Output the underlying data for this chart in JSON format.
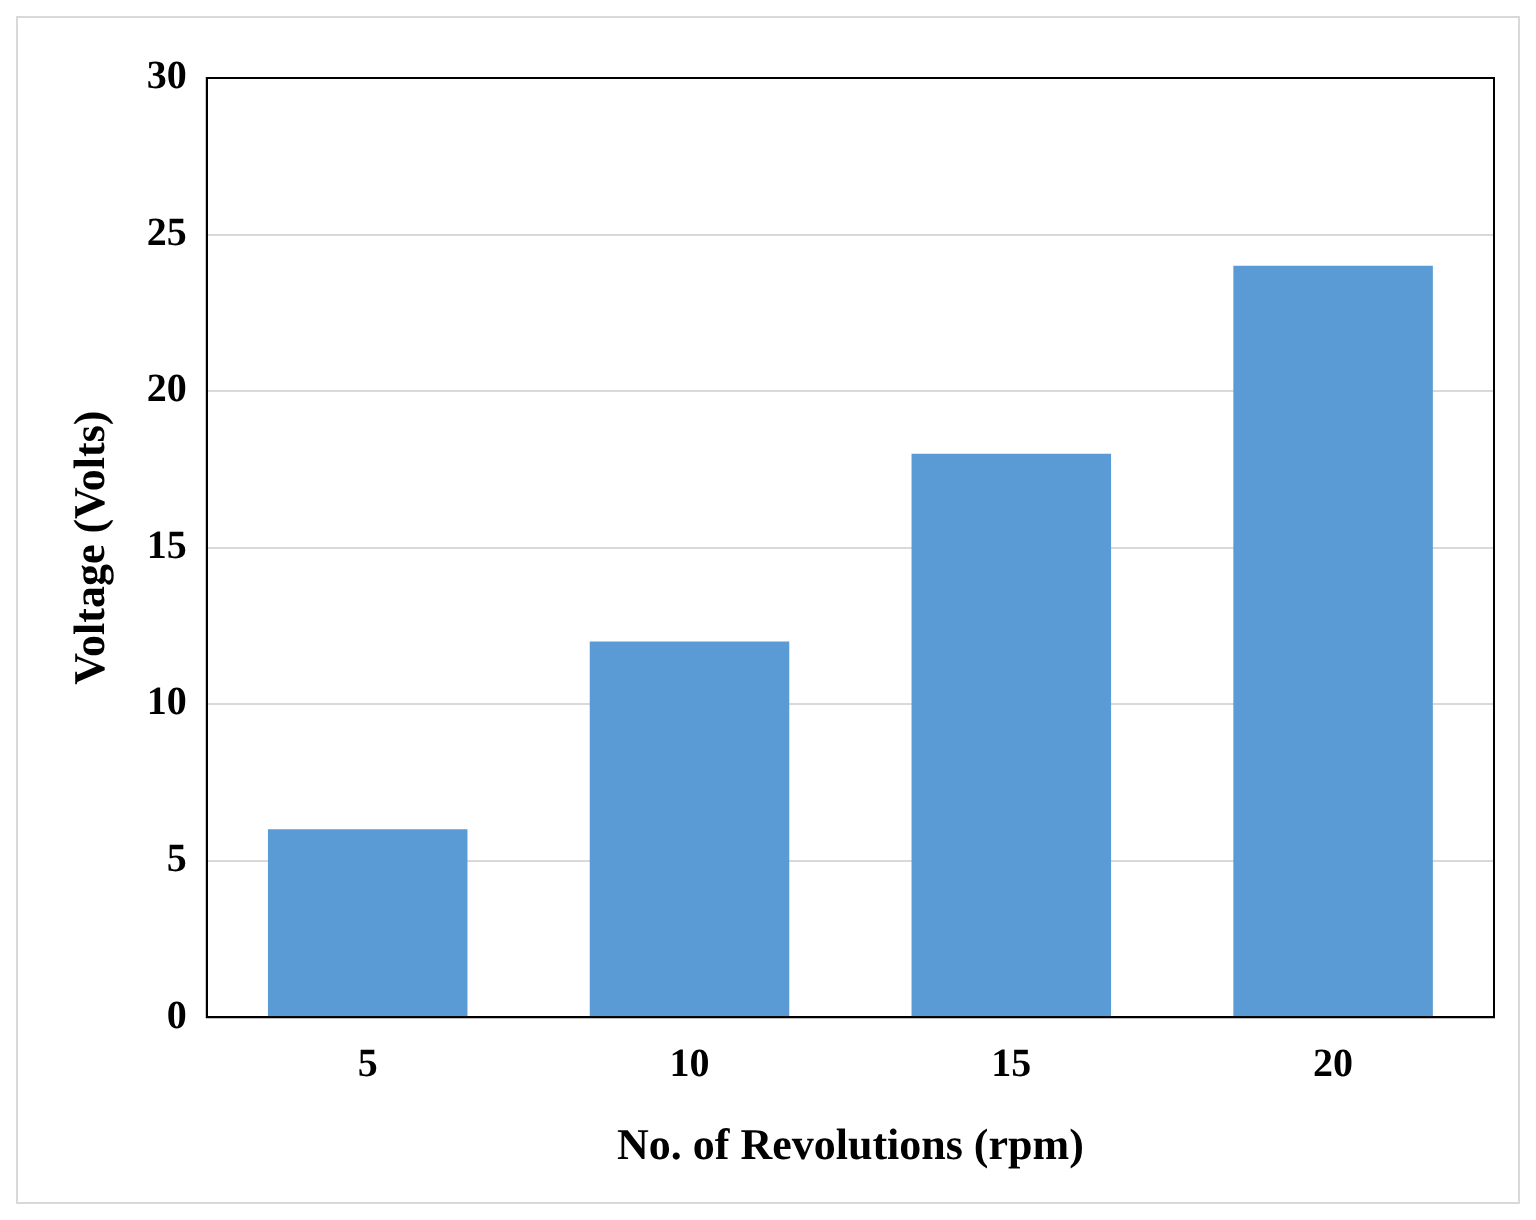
{
  "chart_data": {
    "type": "bar",
    "xlabel": "No. of Revolutions (rpm)",
    "ylabel": "Voltage (Volts)",
    "categories": [
      "5",
      "10",
      "15",
      "20"
    ],
    "values": [
      6,
      12,
      18,
      24
    ],
    "color": "#5b9bd5",
    "ylim": [
      0,
      30
    ],
    "yticks": [
      0,
      5,
      10,
      15,
      20,
      25,
      30
    ],
    "grid": "y",
    "legend": false
  }
}
